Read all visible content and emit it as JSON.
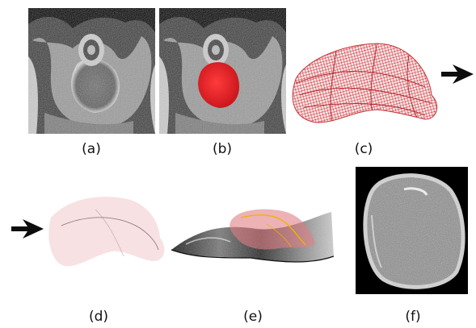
{
  "labels": {
    "a": "(a)",
    "b": "(b)",
    "c": "(c)",
    "d": "(d)",
    "e": "(e)",
    "f": "(f)"
  },
  "colors": {
    "segmentation_red": "#e01f26",
    "mesh_red": "#c8323a",
    "surface_pink": "#f6d7d9",
    "centerline_orange": "#f0b400",
    "arrow": "#0d0d0d",
    "mri_background": "#000000"
  },
  "icons": {
    "flow_arrow": "right-arrow-icon"
  }
}
